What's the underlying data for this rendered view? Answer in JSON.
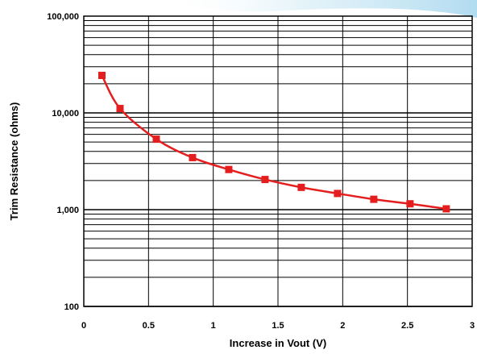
{
  "chart_data": {
    "type": "line",
    "xlabel": "Increase in Vout (V)",
    "ylabel": "Trim Resistance (ohms)",
    "xlim": [
      0,
      3
    ],
    "ylim": [
      100,
      100000
    ],
    "y_scale": "log",
    "grid": true,
    "x_ticks": [
      "0",
      "0.5",
      "1",
      "1.5",
      "2",
      "2.5",
      "3"
    ],
    "y_ticks": [
      "100",
      "1,000",
      "10,000",
      "100,000"
    ],
    "series": [
      {
        "color": "#e41e1e",
        "marker": "square",
        "x": [
          0.14,
          0.28,
          0.56,
          0.84,
          1.12,
          1.4,
          1.68,
          1.96,
          2.24,
          2.52,
          2.8
        ],
        "y": [
          24400,
          11100,
          5350,
          3450,
          2600,
          2050,
          1700,
          1470,
          1280,
          1150,
          1020
        ]
      }
    ]
  },
  "colors": {
    "series": "#e41e1e",
    "grid": "#000000",
    "banner": "#bfe3f2"
  }
}
